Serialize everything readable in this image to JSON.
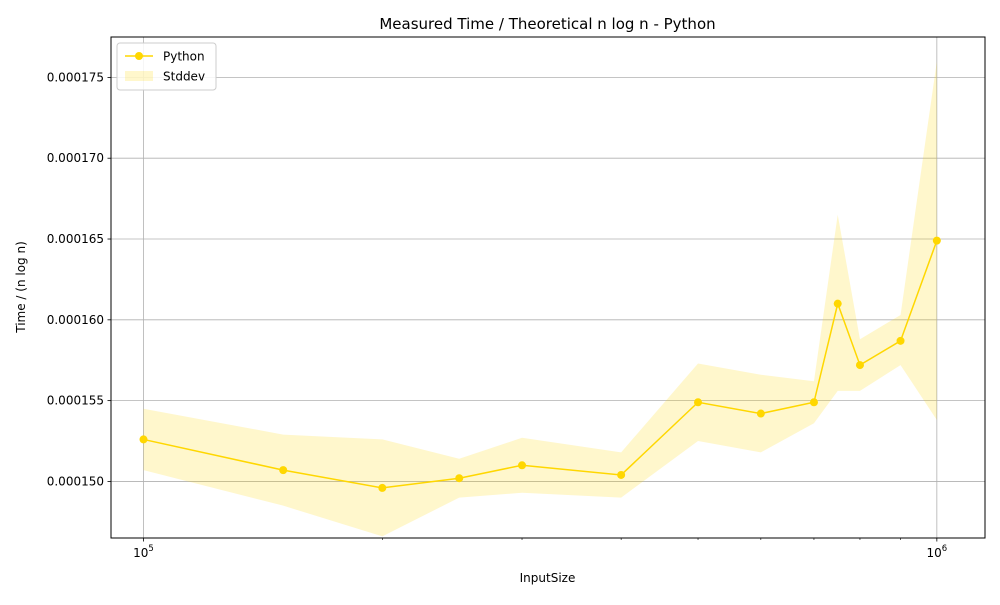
{
  "chart_data": {
    "type": "line",
    "title": "Measured Time / Theoretical n log n - Python",
    "xlabel": "InputSize",
    "ylabel": "Time / (n log n)",
    "xscale": "log",
    "xlim": [
      91000,
      1150000
    ],
    "ylim": [
      0.0001465,
      0.0001775
    ],
    "grid": true,
    "legend_position": "top-left",
    "x_ticks": [
      {
        "value": 100000,
        "base": "10",
        "exp": "5"
      },
      {
        "value": 1000000,
        "base": "10",
        "exp": "6"
      }
    ],
    "y_ticks": [
      {
        "value": 0.00015,
        "label": "0.000150"
      },
      {
        "value": 0.000155,
        "label": "0.000155"
      },
      {
        "value": 0.00016,
        "label": "0.000160"
      },
      {
        "value": 0.000165,
        "label": "0.000165"
      },
      {
        "value": 0.00017,
        "label": "0.000170"
      },
      {
        "value": 0.000175,
        "label": "0.000175"
      }
    ],
    "x": [
      100000,
      150000,
      200000,
      250000,
      300000,
      400000,
      500000,
      600000,
      700000,
      750000,
      800000,
      900000,
      1000000
    ],
    "series": [
      {
        "name": "Python",
        "color": "#ffd700",
        "values": [
          0.0001526,
          0.0001507,
          0.0001496,
          0.0001502,
          0.000151,
          0.0001504,
          0.0001549,
          0.0001542,
          0.0001549,
          0.000161,
          0.0001572,
          0.0001587,
          0.0001649
        ],
        "upper": [
          0.0001545,
          0.0001529,
          0.0001526,
          0.0001514,
          0.0001527,
          0.0001518,
          0.0001573,
          0.0001566,
          0.0001562,
          0.0001665,
          0.0001588,
          0.0001603,
          0.000176
        ],
        "lower": [
          0.0001507,
          0.0001485,
          0.0001466,
          0.000149,
          0.0001493,
          0.000149,
          0.0001525,
          0.0001518,
          0.0001536,
          0.0001556,
          0.0001556,
          0.0001572,
          0.0001538
        ]
      }
    ],
    "legend": [
      {
        "label": "Python",
        "kind": "line-marker",
        "color": "#ffd700"
      },
      {
        "label": "Stddev",
        "kind": "fill",
        "color": "#fff5c8"
      }
    ]
  }
}
